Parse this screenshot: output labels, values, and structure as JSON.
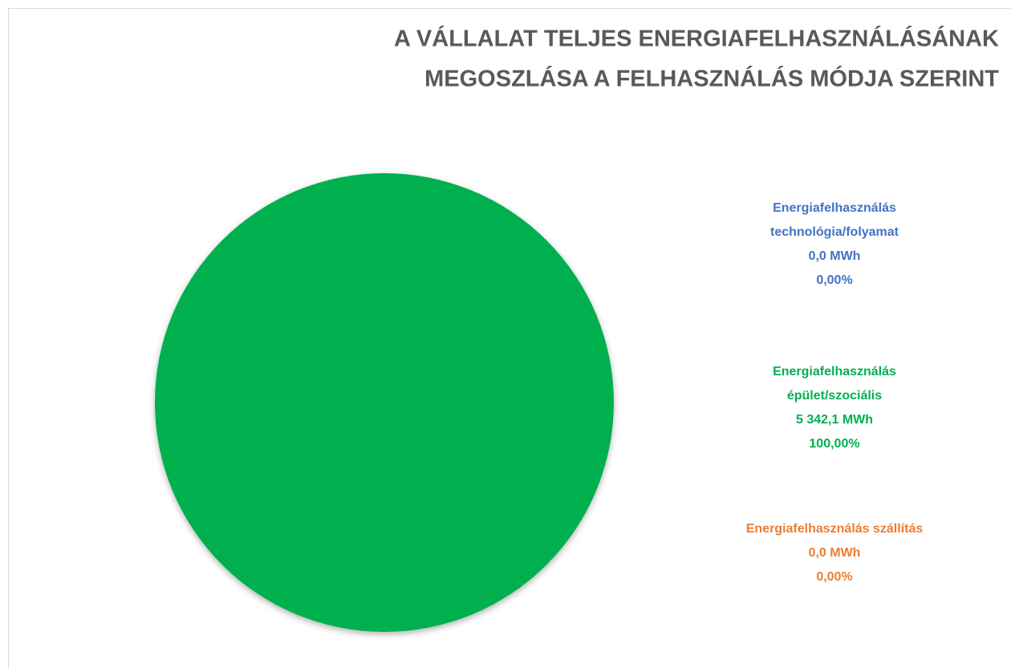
{
  "chart_data": {
    "type": "pie",
    "title": [
      "A VÁLLALAT TELJES ENERGIAFELHASZNÁLÁSÁNAK",
      "MEGOSZLÁSA A FELHASZNÁLÁS MÓDJA SZERINT"
    ],
    "categories": [
      "Energiafelhasználás technológia/folyamat",
      "Energiafelhasználás épület/szociális",
      "Energiafelhasználás szállítás"
    ],
    "values": [
      0.0,
      5342.1,
      0.0
    ],
    "value_labels": [
      "0,0 MWh",
      "5 342,1 MWh",
      "0,0 MWh"
    ],
    "percents": [
      0,
      100,
      0
    ],
    "percent_labels": [
      "0,00%",
      "100,00%",
      "0,00%"
    ],
    "colors": [
      "#4472c4",
      "#00b050",
      "#ed7d31"
    ]
  }
}
